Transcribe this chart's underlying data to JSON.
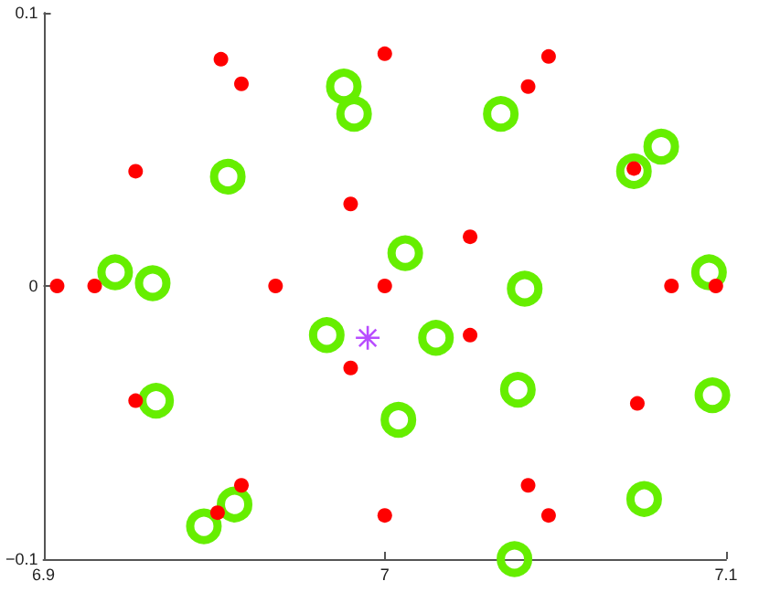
{
  "chart_data": {
    "type": "scatter",
    "xlim": [
      6.9,
      7.1
    ],
    "ylim": [
      -0.1,
      0.1
    ],
    "xticks": [
      6.9,
      7,
      7.1
    ],
    "yticks": [
      {
        "value": -0.1,
        "label": "−0.1"
      },
      0,
      0.1
    ],
    "grid": false,
    "series": [
      {
        "color": "#ff0000",
        "marker": "circle",
        "x": [
          6.904,
          6.915,
          6.927,
          6.952,
          6.958,
          6.968,
          6.99,
          7.0,
          7.0,
          7.042,
          7.048,
          7.025,
          7.073,
          7.084,
          7.097,
          6.927,
          6.99,
          6.958,
          6.951,
          7.0,
          7.025,
          7.074,
          7.042,
          7.048
        ],
        "values": [
          0,
          0,
          0.042,
          0.083,
          0.074,
          0,
          0.03,
          0.085,
          0,
          0.073,
          0.084,
          0.018,
          0.043,
          0,
          0,
          -0.042,
          -0.03,
          -0.073,
          -0.083,
          -0.084,
          -0.018,
          -0.043,
          -0.073,
          -0.084
        ]
      },
      {
        "color": "#66ee00",
        "marker": "circle",
        "x": [
          6.921,
          6.932,
          6.954,
          6.988,
          6.991,
          7.034,
          7.081,
          7.073,
          7.006,
          7.041,
          7.095,
          6.983,
          6.933,
          6.956,
          6.947,
          7.004,
          7.015,
          7.039,
          7.096,
          7.076,
          7.038
        ],
        "values": [
          0.005,
          0.001,
          0.04,
          0.073,
          0.063,
          0.063,
          0.051,
          0.042,
          0.012,
          -0.001,
          0.005,
          -0.018,
          -0.042,
          -0.08,
          -0.088,
          -0.049,
          -0.019,
          -0.038,
          -0.04,
          -0.078,
          -0.1
        ]
      },
      {
        "color": "#b84dff",
        "marker": "star",
        "x": [
          6.995
        ],
        "values": [
          -0.019
        ]
      }
    ]
  }
}
